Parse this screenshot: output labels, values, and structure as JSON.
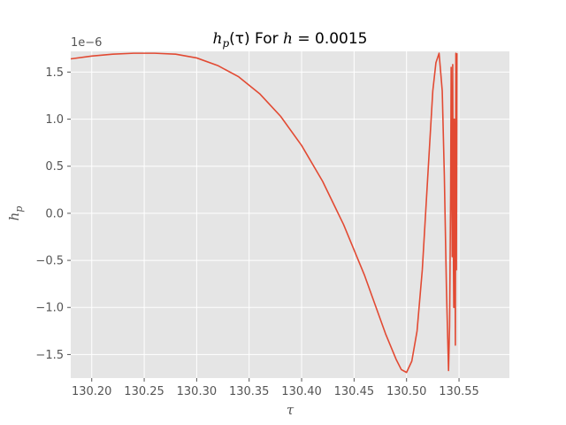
{
  "chart_data": {
    "type": "line",
    "title": "h_p(τ) For h = 0.0015",
    "title_parts": {
      "func": "h",
      "func_sub": "p",
      "arg": "(τ)",
      "mid": " For ",
      "lhs": "h",
      "eq": " = ",
      "value": "0.0015"
    },
    "xlabel": "τ",
    "ylabel": {
      "base": "h",
      "sub": "p"
    },
    "y_offset_text": "1e−6",
    "xlim": [
      130.18,
      130.598
    ],
    "ylim": [
      -1.75,
      1.72
    ],
    "y_scale_factor": 1e-06,
    "grid": true,
    "style": "ggplot",
    "x_ticks": [
      130.2,
      130.25,
      130.3,
      130.35,
      130.4,
      130.45,
      130.5,
      130.55
    ],
    "x_tick_labels": [
      "130.20",
      "130.25",
      "130.30",
      "130.35",
      "130.40",
      "130.45",
      "130.50",
      "130.55"
    ],
    "y_ticks": [
      -1.5,
      -1.0,
      -0.5,
      0.0,
      0.5,
      1.0,
      1.5
    ],
    "y_tick_labels": [
      "−1.5",
      "−1.0",
      "−0.5",
      "0.0",
      "0.5",
      "1.0",
      "1.5"
    ],
    "series": [
      {
        "color": "#E24A33",
        "x": [
          130.18,
          130.2,
          130.22,
          130.24,
          130.25,
          130.26,
          130.28,
          130.3,
          130.32,
          130.34,
          130.36,
          130.38,
          130.4,
          130.42,
          130.44,
          130.46,
          130.48,
          130.49,
          130.495,
          130.5,
          130.505,
          130.51,
          130.515,
          130.52,
          130.525,
          130.528,
          130.531,
          130.534,
          130.536,
          130.538,
          130.54,
          130.541,
          130.542,
          130.5425,
          130.543,
          130.5435,
          130.544,
          130.5445,
          130.545,
          130.5455,
          130.546,
          130.5465,
          130.547,
          130.5475,
          130.548
        ],
        "y": [
          1.64,
          1.67,
          1.69,
          1.7,
          1.7,
          1.7,
          1.69,
          1.65,
          1.57,
          1.45,
          1.27,
          1.03,
          0.72,
          0.34,
          -0.12,
          -0.66,
          -1.28,
          -1.55,
          -1.66,
          -1.69,
          -1.57,
          -1.25,
          -0.6,
          0.35,
          1.3,
          1.6,
          1.7,
          1.3,
          0.4,
          -0.8,
          -1.67,
          -1.2,
          0.2,
          1.55,
          0.5,
          -0.46,
          1.58,
          -0.2,
          -1.0,
          1.0,
          0.2,
          -1.4,
          1.7,
          -0.6,
          1.7
        ]
      }
    ]
  }
}
